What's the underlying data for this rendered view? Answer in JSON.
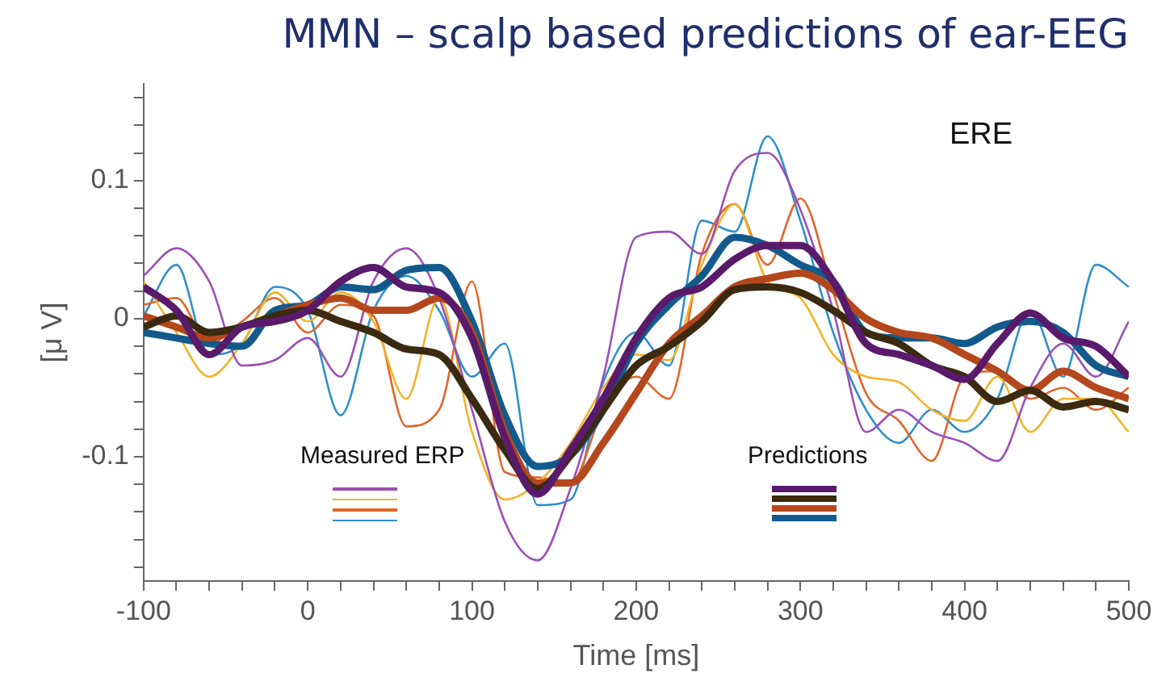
{
  "chart_data": {
    "type": "line",
    "title": "MMN – scalp based predictions of ear-EEG",
    "xlabel": "Time [ms]",
    "ylabel": "[μ V]",
    "annotations": [
      "ERE",
      "Measured ERP",
      "Predictions"
    ],
    "x": [
      -100,
      -80,
      -60,
      -40,
      -20,
      0,
      20,
      40,
      60,
      80,
      100,
      120,
      140,
      160,
      180,
      200,
      220,
      240,
      260,
      280,
      300,
      320,
      340,
      360,
      380,
      400,
      420,
      440,
      460,
      480,
      500
    ],
    "xlim": [
      -100,
      500
    ],
    "xticks": [
      -100,
      {
        "value": -80,
        "label": null
      },
      {
        "value": -60,
        "label": null
      },
      {
        "value": -40,
        "label": null
      },
      {
        "value": -20,
        "label": null
      },
      0,
      {
        "value": 20,
        "label": null
      },
      {
        "value": 40,
        "label": null
      },
      {
        "value": 60,
        "label": null
      },
      {
        "value": 80,
        "label": null
      },
      100,
      {
        "value": 120,
        "label": null
      },
      {
        "value": 140,
        "label": null
      },
      {
        "value": 160,
        "label": null
      },
      {
        "value": 180,
        "label": null
      },
      200,
      {
        "value": 220,
        "label": null
      },
      {
        "value": 240,
        "label": null
      },
      {
        "value": 260,
        "label": null
      },
      {
        "value": 280,
        "label": null
      },
      300,
      {
        "value": 320,
        "label": null
      },
      {
        "value": 340,
        "label": null
      },
      {
        "value": 360,
        "label": null
      },
      {
        "value": 380,
        "label": null
      },
      400,
      {
        "value": 420,
        "label": null
      },
      {
        "value": 440,
        "label": null
      },
      {
        "value": 460,
        "label": null
      },
      {
        "value": 480,
        "label": null
      },
      500
    ],
    "ylim": [
      -0.19,
      0.17
    ],
    "yticks": [
      {
        "value": -0.18,
        "label": null
      },
      {
        "value": -0.16,
        "label": null
      },
      {
        "value": -0.14,
        "label": null
      },
      {
        "value": -0.12,
        "label": null
      },
      -0.1,
      {
        "value": -0.08,
        "label": null
      },
      {
        "value": -0.06,
        "label": null
      },
      {
        "value": -0.04,
        "label": null
      },
      {
        "value": -0.02,
        "label": null
      },
      0,
      {
        "value": 0.02,
        "label": null
      },
      {
        "value": 0.04,
        "label": null
      },
      {
        "value": 0.06,
        "label": null
      },
      {
        "value": 0.08,
        "label": null
      },
      0.1,
      {
        "value": 0.12,
        "label": null
      },
      {
        "value": 0.14,
        "label": null
      },
      {
        "value": 0.16,
        "label": null
      }
    ],
    "series": [
      {
        "color": "#9b4fb5",
        "values": [
          0.031,
          0.051,
          0.027,
          -0.034,
          -0.03,
          -0.014,
          -0.042,
          0.027,
          0.051,
          0.015,
          -0.066,
          -0.147,
          -0.175,
          -0.123,
          -0.042,
          0.059,
          0.063,
          0.047,
          0.107,
          0.12,
          0.079,
          0.006,
          -0.082,
          -0.066,
          -0.082,
          -0.09,
          -0.103,
          -0.05,
          -0.018,
          -0.042,
          -0.002
        ]
      },
      {
        "color": "#f0b429",
        "values": [
          0.027,
          -0.01,
          -0.042,
          -0.018,
          0.019,
          -0.002,
          0.019,
          -0.002,
          -0.058,
          0.015,
          -0.082,
          -0.131,
          -0.119,
          -0.09,
          -0.05,
          -0.026,
          -0.03,
          0.039,
          0.083,
          0.027,
          0.015,
          -0.026,
          -0.042,
          -0.046,
          -0.066,
          -0.074,
          -0.042,
          -0.082,
          -0.058,
          -0.058,
          -0.082
        ]
      },
      {
        "color": "#e0662a",
        "values": [
          0.01,
          0.015,
          -0.018,
          -0.002,
          0.015,
          -0.01,
          0.01,
          0.002,
          -0.078,
          -0.066,
          0.027,
          -0.111,
          -0.115,
          -0.119,
          -0.066,
          -0.042,
          -0.058,
          0.047,
          0.083,
          0.039,
          0.087,
          0.019,
          -0.054,
          -0.074,
          -0.103,
          -0.042,
          -0.038,
          -0.058,
          -0.05,
          -0.066,
          -0.05
        ]
      },
      {
        "color": "#2f8fc9",
        "values": [
          0.002,
          0.039,
          -0.026,
          -0.018,
          0.023,
          0.006,
          -0.07,
          0.006,
          0.031,
          0.006,
          -0.042,
          -0.018,
          -0.135,
          -0.131,
          -0.046,
          -0.01,
          -0.034,
          0.071,
          0.063,
          0.132,
          0.071,
          -0.01,
          -0.066,
          -0.09,
          -0.066,
          -0.082,
          -0.058,
          0.006,
          -0.042,
          0.039,
          0.023
        ]
      },
      {
        "color": "#5a1a6b",
        "values": [
          0.023,
          0.006,
          -0.026,
          -0.006,
          -0.002,
          0.006,
          0.027,
          0.037,
          0.023,
          0.019,
          -0.014,
          -0.086,
          -0.127,
          -0.095,
          -0.058,
          -0.014,
          0.015,
          0.023,
          0.043,
          0.053,
          0.053,
          0.027,
          -0.018,
          -0.026,
          -0.034,
          -0.044,
          -0.018,
          0.004,
          -0.014,
          -0.02,
          -0.042
        ]
      },
      {
        "color": "#3a2a10",
        "values": [
          -0.006,
          0.002,
          -0.01,
          -0.006,
          0.002,
          0.006,
          -0.002,
          -0.01,
          -0.022,
          -0.026,
          -0.058,
          -0.095,
          -0.123,
          -0.099,
          -0.066,
          -0.034,
          -0.02,
          -0.002,
          0.021,
          0.023,
          0.019,
          0.006,
          -0.01,
          -0.018,
          -0.034,
          -0.042,
          -0.06,
          -0.052,
          -0.064,
          -0.06,
          -0.066
        ]
      },
      {
        "color": "#b5471c",
        "values": [
          0.002,
          -0.006,
          -0.014,
          -0.006,
          0.002,
          0.01,
          0.015,
          0.006,
          0.006,
          0.015,
          -0.01,
          -0.082,
          -0.119,
          -0.119,
          -0.09,
          -0.054,
          -0.018,
          0.002,
          0.023,
          0.029,
          0.033,
          0.021,
          0,
          -0.01,
          -0.014,
          -0.026,
          -0.038,
          -0.052,
          -0.038,
          -0.05,
          -0.058
        ]
      },
      {
        "color": "#125a8c",
        "values": [
          -0.01,
          -0.014,
          -0.018,
          -0.02,
          0.006,
          0.01,
          0.023,
          0.021,
          0.035,
          0.037,
          -0.002,
          -0.07,
          -0.107,
          -0.099,
          -0.066,
          -0.018,
          0.01,
          0.031,
          0.059,
          0.053,
          0.039,
          0.027,
          -0.01,
          -0.014,
          -0.014,
          -0.018,
          -0.006,
          -0.002,
          -0.01,
          -0.034,
          -0.042
        ]
      }
    ]
  }
}
